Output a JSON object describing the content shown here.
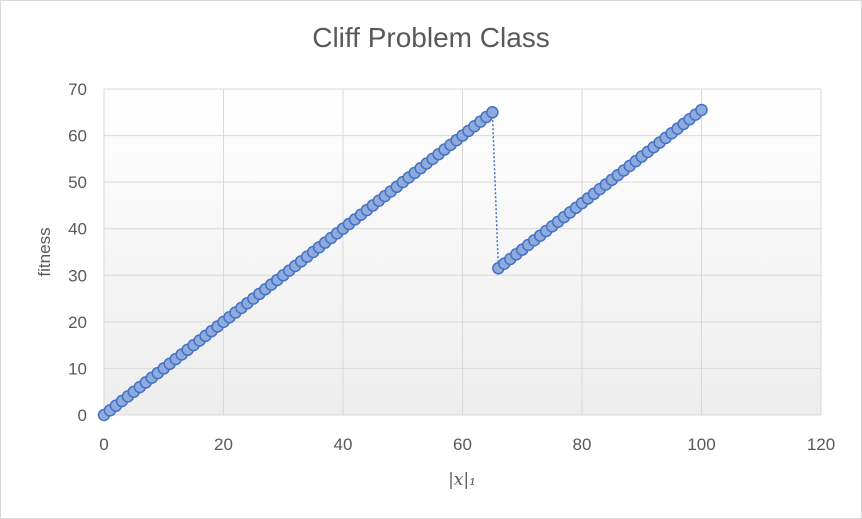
{
  "chart_data": {
    "type": "scatter",
    "title": "Cliff Problem Class",
    "xlabel": "|x|₁",
    "ylabel": "fitness",
    "xlim": [
      0,
      120
    ],
    "ylim": [
      0,
      70
    ],
    "x_ticks": [
      "0",
      "20",
      "40",
      "60",
      "80",
      "100",
      "120"
    ],
    "y_ticks": [
      "0",
      "10",
      "20",
      "30",
      "40",
      "50",
      "60",
      "70"
    ],
    "grid": true,
    "legend": "none",
    "series": [
      {
        "values": [
          {
            "x": 0,
            "y": 0
          },
          {
            "x": 1,
            "y": 1
          },
          {
            "x": 2,
            "y": 2
          },
          {
            "x": 3,
            "y": 3
          },
          {
            "x": 4,
            "y": 4
          },
          {
            "x": 5,
            "y": 5
          },
          {
            "x": 6,
            "y": 6
          },
          {
            "x": 7,
            "y": 7
          },
          {
            "x": 8,
            "y": 8
          },
          {
            "x": 9,
            "y": 9
          },
          {
            "x": 10,
            "y": 10
          },
          {
            "x": 11,
            "y": 11
          },
          {
            "x": 12,
            "y": 12
          },
          {
            "x": 13,
            "y": 13
          },
          {
            "x": 14,
            "y": 14
          },
          {
            "x": 15,
            "y": 15
          },
          {
            "x": 16,
            "y": 16
          },
          {
            "x": 17,
            "y": 17
          },
          {
            "x": 18,
            "y": 18
          },
          {
            "x": 19,
            "y": 19
          },
          {
            "x": 20,
            "y": 20
          },
          {
            "x": 21,
            "y": 21
          },
          {
            "x": 22,
            "y": 22
          },
          {
            "x": 23,
            "y": 23
          },
          {
            "x": 24,
            "y": 24
          },
          {
            "x": 25,
            "y": 25
          },
          {
            "x": 26,
            "y": 26
          },
          {
            "x": 27,
            "y": 27
          },
          {
            "x": 28,
            "y": 28
          },
          {
            "x": 29,
            "y": 29
          },
          {
            "x": 30,
            "y": 30
          },
          {
            "x": 31,
            "y": 31
          },
          {
            "x": 32,
            "y": 32
          },
          {
            "x": 33,
            "y": 33
          },
          {
            "x": 34,
            "y": 34
          },
          {
            "x": 35,
            "y": 35
          },
          {
            "x": 36,
            "y": 36
          },
          {
            "x": 37,
            "y": 37
          },
          {
            "x": 38,
            "y": 38
          },
          {
            "x": 39,
            "y": 39
          },
          {
            "x": 40,
            "y": 40
          },
          {
            "x": 41,
            "y": 41
          },
          {
            "x": 42,
            "y": 42
          },
          {
            "x": 43,
            "y": 43
          },
          {
            "x": 44,
            "y": 44
          },
          {
            "x": 45,
            "y": 45
          },
          {
            "x": 46,
            "y": 46
          },
          {
            "x": 47,
            "y": 47
          },
          {
            "x": 48,
            "y": 48
          },
          {
            "x": 49,
            "y": 49
          },
          {
            "x": 50,
            "y": 50
          },
          {
            "x": 51,
            "y": 51
          },
          {
            "x": 52,
            "y": 52
          },
          {
            "x": 53,
            "y": 53
          },
          {
            "x": 54,
            "y": 54
          },
          {
            "x": 55,
            "y": 55
          },
          {
            "x": 56,
            "y": 56
          },
          {
            "x": 57,
            "y": 57
          },
          {
            "x": 58,
            "y": 58
          },
          {
            "x": 59,
            "y": 59
          },
          {
            "x": 60,
            "y": 60
          },
          {
            "x": 61,
            "y": 61
          },
          {
            "x": 62,
            "y": 62
          },
          {
            "x": 63,
            "y": 63
          },
          {
            "x": 64,
            "y": 64
          },
          {
            "x": 65,
            "y": 65
          },
          {
            "x": 66,
            "y": 31.5
          },
          {
            "x": 67,
            "y": 32.5
          },
          {
            "x": 68,
            "y": 33.5
          },
          {
            "x": 69,
            "y": 34.5
          },
          {
            "x": 70,
            "y": 35.5
          },
          {
            "x": 71,
            "y": 36.5
          },
          {
            "x": 72,
            "y": 37.5
          },
          {
            "x": 73,
            "y": 38.5
          },
          {
            "x": 74,
            "y": 39.5
          },
          {
            "x": 75,
            "y": 40.5
          },
          {
            "x": 76,
            "y": 41.5
          },
          {
            "x": 77,
            "y": 42.5
          },
          {
            "x": 78,
            "y": 43.5
          },
          {
            "x": 79,
            "y": 44.5
          },
          {
            "x": 80,
            "y": 45.5
          },
          {
            "x": 81,
            "y": 46.5
          },
          {
            "x": 82,
            "y": 47.5
          },
          {
            "x": 83,
            "y": 48.5
          },
          {
            "x": 84,
            "y": 49.5
          },
          {
            "x": 85,
            "y": 50.5
          },
          {
            "x": 86,
            "y": 51.5
          },
          {
            "x": 87,
            "y": 52.5
          },
          {
            "x": 88,
            "y": 53.5
          },
          {
            "x": 89,
            "y": 54.5
          },
          {
            "x": 90,
            "y": 55.5
          },
          {
            "x": 91,
            "y": 56.5
          },
          {
            "x": 92,
            "y": 57.5
          },
          {
            "x": 93,
            "y": 58.5
          },
          {
            "x": 94,
            "y": 59.5
          },
          {
            "x": 95,
            "y": 60.5
          },
          {
            "x": 96,
            "y": 61.5
          },
          {
            "x": 97,
            "y": 62.5
          },
          {
            "x": 98,
            "y": 63.5
          },
          {
            "x": 99,
            "y": 64.5
          },
          {
            "x": 100,
            "y": 65.5
          }
        ]
      }
    ],
    "colors": {
      "marker_fill": "#8faadc",
      "marker_stroke": "#4472c4",
      "line": "#4472c4",
      "grid": "#d9d9d9",
      "text": "#595959"
    }
  }
}
